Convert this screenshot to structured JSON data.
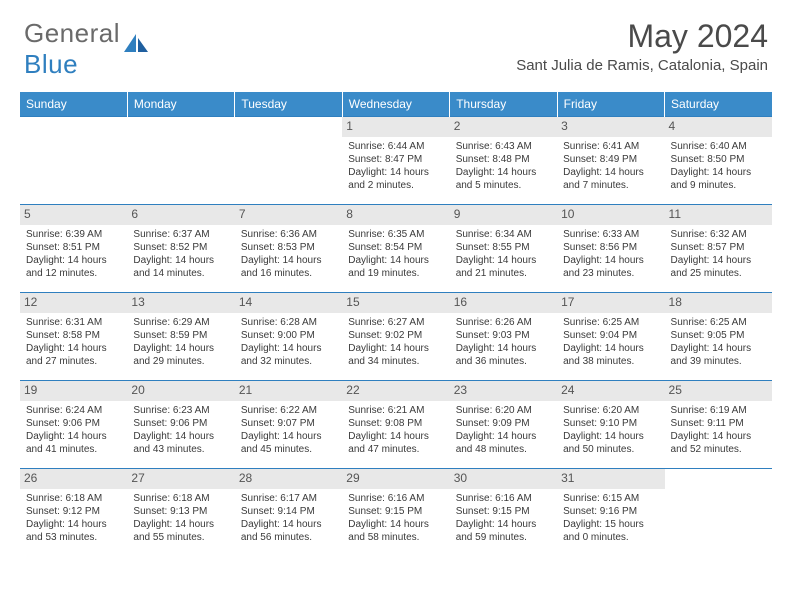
{
  "logo": {
    "general": "General",
    "blue": "Blue"
  },
  "title": "May 2024",
  "subtitle": "Sant Julia de Ramis, Catalonia, Spain",
  "colors": {
    "header_bg": "#3a8bc9",
    "header_text": "#ffffff",
    "border": "#2f7fbf",
    "daynum_bg": "#e8e8e8",
    "text": "#3a3a3a",
    "logo_gray": "#6a6a6a",
    "logo_blue": "#2f7fbf"
  },
  "weekdays": [
    "Sunday",
    "Monday",
    "Tuesday",
    "Wednesday",
    "Thursday",
    "Friday",
    "Saturday"
  ],
  "weeks": [
    [
      null,
      null,
      null,
      {
        "n": "1",
        "sr": "Sunrise: 6:44 AM",
        "ss": "Sunset: 8:47 PM",
        "d1": "Daylight: 14 hours",
        "d2": "and 2 minutes."
      },
      {
        "n": "2",
        "sr": "Sunrise: 6:43 AM",
        "ss": "Sunset: 8:48 PM",
        "d1": "Daylight: 14 hours",
        "d2": "and 5 minutes."
      },
      {
        "n": "3",
        "sr": "Sunrise: 6:41 AM",
        "ss": "Sunset: 8:49 PM",
        "d1": "Daylight: 14 hours",
        "d2": "and 7 minutes."
      },
      {
        "n": "4",
        "sr": "Sunrise: 6:40 AM",
        "ss": "Sunset: 8:50 PM",
        "d1": "Daylight: 14 hours",
        "d2": "and 9 minutes."
      }
    ],
    [
      {
        "n": "5",
        "sr": "Sunrise: 6:39 AM",
        "ss": "Sunset: 8:51 PM",
        "d1": "Daylight: 14 hours",
        "d2": "and 12 minutes."
      },
      {
        "n": "6",
        "sr": "Sunrise: 6:37 AM",
        "ss": "Sunset: 8:52 PM",
        "d1": "Daylight: 14 hours",
        "d2": "and 14 minutes."
      },
      {
        "n": "7",
        "sr": "Sunrise: 6:36 AM",
        "ss": "Sunset: 8:53 PM",
        "d1": "Daylight: 14 hours",
        "d2": "and 16 minutes."
      },
      {
        "n": "8",
        "sr": "Sunrise: 6:35 AM",
        "ss": "Sunset: 8:54 PM",
        "d1": "Daylight: 14 hours",
        "d2": "and 19 minutes."
      },
      {
        "n": "9",
        "sr": "Sunrise: 6:34 AM",
        "ss": "Sunset: 8:55 PM",
        "d1": "Daylight: 14 hours",
        "d2": "and 21 minutes."
      },
      {
        "n": "10",
        "sr": "Sunrise: 6:33 AM",
        "ss": "Sunset: 8:56 PM",
        "d1": "Daylight: 14 hours",
        "d2": "and 23 minutes."
      },
      {
        "n": "11",
        "sr": "Sunrise: 6:32 AM",
        "ss": "Sunset: 8:57 PM",
        "d1": "Daylight: 14 hours",
        "d2": "and 25 minutes."
      }
    ],
    [
      {
        "n": "12",
        "sr": "Sunrise: 6:31 AM",
        "ss": "Sunset: 8:58 PM",
        "d1": "Daylight: 14 hours",
        "d2": "and 27 minutes."
      },
      {
        "n": "13",
        "sr": "Sunrise: 6:29 AM",
        "ss": "Sunset: 8:59 PM",
        "d1": "Daylight: 14 hours",
        "d2": "and 29 minutes."
      },
      {
        "n": "14",
        "sr": "Sunrise: 6:28 AM",
        "ss": "Sunset: 9:00 PM",
        "d1": "Daylight: 14 hours",
        "d2": "and 32 minutes."
      },
      {
        "n": "15",
        "sr": "Sunrise: 6:27 AM",
        "ss": "Sunset: 9:02 PM",
        "d1": "Daylight: 14 hours",
        "d2": "and 34 minutes."
      },
      {
        "n": "16",
        "sr": "Sunrise: 6:26 AM",
        "ss": "Sunset: 9:03 PM",
        "d1": "Daylight: 14 hours",
        "d2": "and 36 minutes."
      },
      {
        "n": "17",
        "sr": "Sunrise: 6:25 AM",
        "ss": "Sunset: 9:04 PM",
        "d1": "Daylight: 14 hours",
        "d2": "and 38 minutes."
      },
      {
        "n": "18",
        "sr": "Sunrise: 6:25 AM",
        "ss": "Sunset: 9:05 PM",
        "d1": "Daylight: 14 hours",
        "d2": "and 39 minutes."
      }
    ],
    [
      {
        "n": "19",
        "sr": "Sunrise: 6:24 AM",
        "ss": "Sunset: 9:06 PM",
        "d1": "Daylight: 14 hours",
        "d2": "and 41 minutes."
      },
      {
        "n": "20",
        "sr": "Sunrise: 6:23 AM",
        "ss": "Sunset: 9:06 PM",
        "d1": "Daylight: 14 hours",
        "d2": "and 43 minutes."
      },
      {
        "n": "21",
        "sr": "Sunrise: 6:22 AM",
        "ss": "Sunset: 9:07 PM",
        "d1": "Daylight: 14 hours",
        "d2": "and 45 minutes."
      },
      {
        "n": "22",
        "sr": "Sunrise: 6:21 AM",
        "ss": "Sunset: 9:08 PM",
        "d1": "Daylight: 14 hours",
        "d2": "and 47 minutes."
      },
      {
        "n": "23",
        "sr": "Sunrise: 6:20 AM",
        "ss": "Sunset: 9:09 PM",
        "d1": "Daylight: 14 hours",
        "d2": "and 48 minutes."
      },
      {
        "n": "24",
        "sr": "Sunrise: 6:20 AM",
        "ss": "Sunset: 9:10 PM",
        "d1": "Daylight: 14 hours",
        "d2": "and 50 minutes."
      },
      {
        "n": "25",
        "sr": "Sunrise: 6:19 AM",
        "ss": "Sunset: 9:11 PM",
        "d1": "Daylight: 14 hours",
        "d2": "and 52 minutes."
      }
    ],
    [
      {
        "n": "26",
        "sr": "Sunrise: 6:18 AM",
        "ss": "Sunset: 9:12 PM",
        "d1": "Daylight: 14 hours",
        "d2": "and 53 minutes."
      },
      {
        "n": "27",
        "sr": "Sunrise: 6:18 AM",
        "ss": "Sunset: 9:13 PM",
        "d1": "Daylight: 14 hours",
        "d2": "and 55 minutes."
      },
      {
        "n": "28",
        "sr": "Sunrise: 6:17 AM",
        "ss": "Sunset: 9:14 PM",
        "d1": "Daylight: 14 hours",
        "d2": "and 56 minutes."
      },
      {
        "n": "29",
        "sr": "Sunrise: 6:16 AM",
        "ss": "Sunset: 9:15 PM",
        "d1": "Daylight: 14 hours",
        "d2": "and 58 minutes."
      },
      {
        "n": "30",
        "sr": "Sunrise: 6:16 AM",
        "ss": "Sunset: 9:15 PM",
        "d1": "Daylight: 14 hours",
        "d2": "and 59 minutes."
      },
      {
        "n": "31",
        "sr": "Sunrise: 6:15 AM",
        "ss": "Sunset: 9:16 PM",
        "d1": "Daylight: 15 hours",
        "d2": "and 0 minutes."
      },
      null
    ]
  ]
}
